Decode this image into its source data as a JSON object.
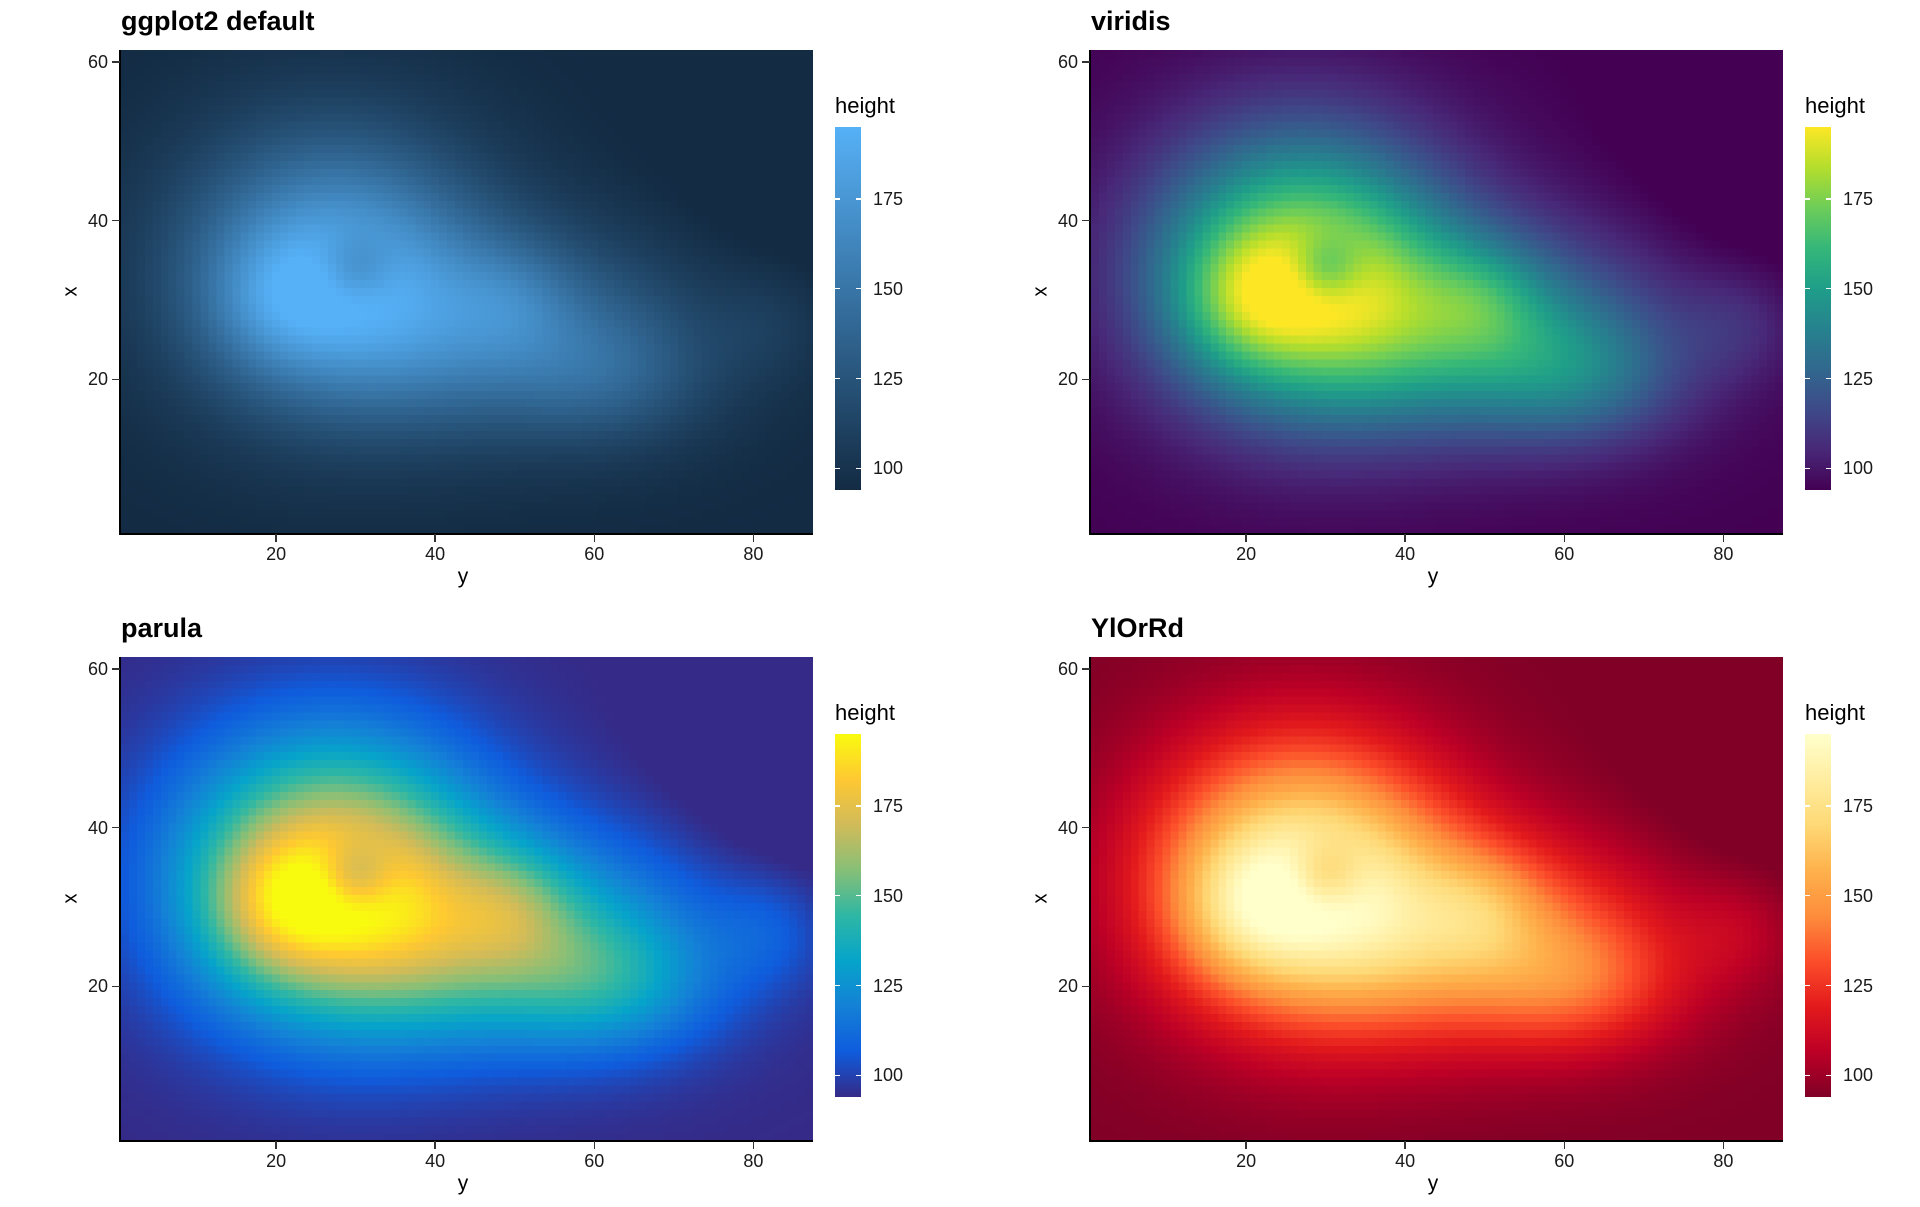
{
  "chart_data": [
    {
      "type": "heatmap",
      "title": "ggplot2 default",
      "palette": [
        "#132B43",
        "#56B1F7"
      ],
      "xlabel": "y",
      "ylabel": "x",
      "xticks": [
        20,
        40,
        60,
        80
      ],
      "yticks": [
        20,
        40,
        60
      ],
      "xlim": [
        1,
        87
      ],
      "ylim": [
        1,
        61
      ],
      "legend": {
        "title": "height",
        "ticks": [
          100,
          125,
          150,
          175
        ],
        "range": [
          94,
          195
        ],
        "placement": "right"
      }
    },
    {
      "type": "heatmap",
      "title": "viridis",
      "palette": [
        "#440154",
        "#482878",
        "#3E4A89",
        "#31688E",
        "#26828E",
        "#1F9E89",
        "#35B779",
        "#6DCD59",
        "#B4DE2C",
        "#FDE725"
      ],
      "xlabel": "y",
      "ylabel": "x",
      "xticks": [
        20,
        40,
        60,
        80
      ],
      "yticks": [
        20,
        40,
        60
      ],
      "xlim": [
        1,
        87
      ],
      "ylim": [
        1,
        61
      ],
      "legend": {
        "title": "height",
        "ticks": [
          100,
          125,
          150,
          175
        ],
        "range": [
          94,
          195
        ],
        "placement": "right"
      }
    },
    {
      "type": "heatmap",
      "title": "parula",
      "palette": [
        "#352A87",
        "#0F5CDD",
        "#1481D6",
        "#06A4CA",
        "#2EB7A4",
        "#87BF77",
        "#D1BB59",
        "#FEC832",
        "#F9FB0E"
      ],
      "xlabel": "y",
      "ylabel": "x",
      "xticks": [
        20,
        40,
        60,
        80
      ],
      "yticks": [
        20,
        40,
        60
      ],
      "xlim": [
        1,
        87
      ],
      "ylim": [
        1,
        61
      ],
      "legend": {
        "title": "height",
        "ticks": [
          100,
          125,
          150,
          175
        ],
        "range": [
          94,
          195
        ],
        "placement": "right"
      }
    },
    {
      "type": "heatmap",
      "title": "YlOrRd",
      "palette": [
        "#800026",
        "#BD0026",
        "#E31A1C",
        "#FC4E2A",
        "#FD8D3C",
        "#FEB24C",
        "#FED976",
        "#FFEDA0",
        "#FFFFCC"
      ],
      "xlabel": "y",
      "ylabel": "x",
      "xticks": [
        20,
        40,
        60,
        80
      ],
      "yticks": [
        20,
        40,
        60
      ],
      "xlim": [
        1,
        87
      ],
      "ylim": [
        1,
        61
      ],
      "legend": {
        "title": "height",
        "ticks": [
          100,
          125,
          150,
          175
        ],
        "range": [
          94,
          195
        ],
        "placement": "right"
      }
    }
  ]
}
